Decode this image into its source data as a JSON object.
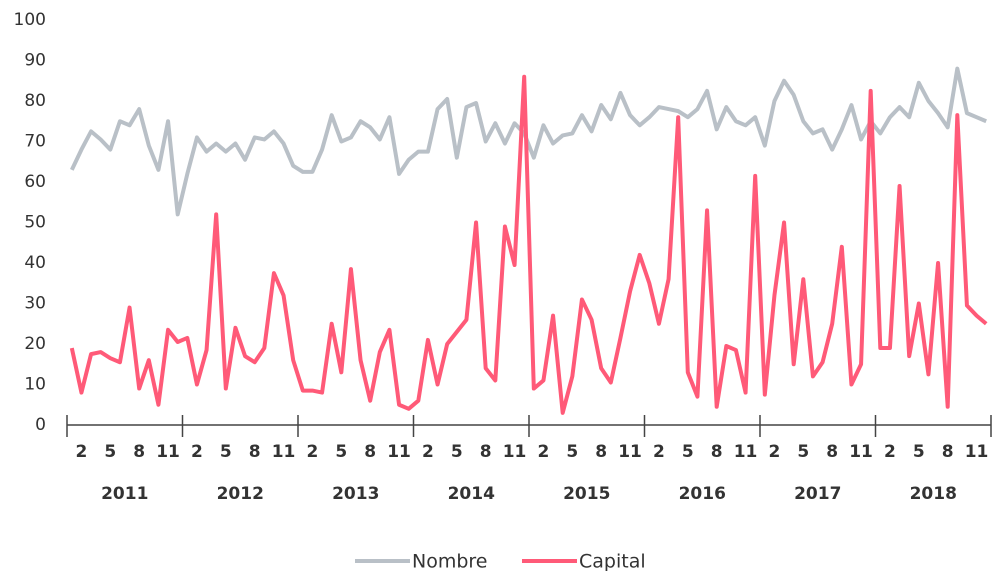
{
  "chart_data": {
    "type": "line",
    "categories": [
      null,
      "2",
      null,
      null,
      "5",
      null,
      null,
      "8",
      null,
      null,
      "11",
      null,
      null,
      "2",
      null,
      null,
      "5",
      null,
      null,
      "8",
      null,
      null,
      "11",
      null,
      null,
      "2",
      null,
      null,
      "5",
      null,
      null,
      "8",
      null,
      null,
      "11",
      null,
      null,
      "2",
      null,
      null,
      "5",
      null,
      null,
      "8",
      null,
      null,
      "11",
      null,
      null,
      "2",
      null,
      null,
      "5",
      null,
      null,
      "8",
      null,
      null,
      "11",
      null,
      null,
      "2",
      null,
      null,
      "5",
      null,
      null,
      "8",
      null,
      null,
      "11",
      null,
      null,
      "2",
      null,
      null,
      "5",
      null,
      null,
      "8",
      null,
      null,
      "11",
      null,
      null,
      "2",
      null,
      null,
      "5",
      null,
      null,
      "8",
      null,
      null,
      "11",
      null
    ],
    "years": [
      "2011",
      "2012",
      "2013",
      "2014",
      "2015",
      "2016",
      "2017",
      "2018"
    ],
    "series": [
      {
        "name": "Nombre",
        "color": "#b9c0c7",
        "values": [
          63,
          68,
          72.5,
          70.5,
          68,
          75,
          74,
          78,
          69,
          63,
          75,
          52,
          62,
          71,
          67.5,
          69.5,
          67.5,
          69.5,
          65.5,
          71,
          70.5,
          72.5,
          69.5,
          64,
          62.5,
          62.5,
          68,
          76.5,
          70,
          71,
          75,
          73.5,
          70.5,
          76,
          62,
          65.5,
          67.5,
          67.5,
          78,
          80.5,
          66,
          78.5,
          79.5,
          70,
          74.5,
          69.5,
          74.5,
          72,
          66,
          74,
          69.5,
          71.5,
          72,
          76.5,
          72.5,
          79,
          75.5,
          82,
          76.5,
          74,
          76,
          78.5,
          78,
          77.5,
          76,
          78,
          82.5,
          73,
          78.5,
          75,
          74,
          76,
          69,
          80,
          85,
          81.5,
          75,
          72,
          73,
          68,
          73,
          79,
          70.5,
          75,
          72,
          76,
          78.5,
          76,
          84.5,
          80,
          77,
          73.5,
          88,
          77,
          76,
          75
        ]
      },
      {
        "name": "Capital",
        "color": "#ff5a78",
        "values": [
          19,
          8,
          17.5,
          18,
          16.5,
          15.5,
          29,
          9,
          16,
          5,
          23.5,
          20.5,
          21.5,
          10,
          18.5,
          52,
          9,
          24,
          17,
          15.5,
          19,
          37.5,
          32,
          16,
          8.5,
          8.5,
          8,
          25,
          13,
          38.5,
          16,
          6,
          18,
          23.5,
          5,
          4,
          6,
          21,
          10,
          20,
          23,
          26,
          50,
          14,
          11,
          49,
          39.5,
          86,
          9,
          11,
          27,
          3,
          12,
          31,
          26,
          14,
          10.5,
          21.5,
          33,
          42,
          35,
          25,
          36,
          76,
          13,
          7,
          53,
          4.5,
          19.5,
          18.5,
          8,
          61.5,
          7.5,
          32,
          50,
          15,
          36,
          12,
          15.5,
          25,
          44,
          10,
          15,
          82.5,
          19,
          19,
          59,
          17,
          30,
          12.5,
          40,
          4.5,
          76.5,
          29.5,
          27,
          25
        ]
      }
    ],
    "ylim": [
      0,
      100
    ],
    "yticks": [
      0,
      10,
      20,
      30,
      40,
      50,
      60,
      70,
      80,
      90,
      100
    ],
    "grid": false,
    "legend": "bottom"
  }
}
